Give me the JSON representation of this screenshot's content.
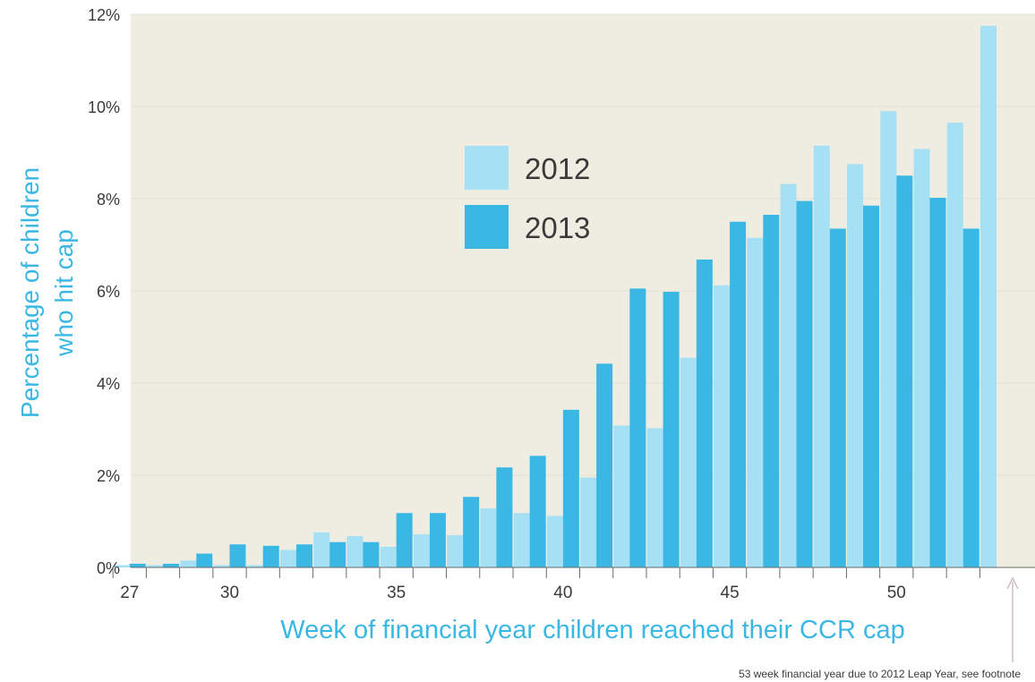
{
  "chart_data": {
    "type": "bar",
    "title": "",
    "xlabel": "Week of financial year children reached their CCR cap",
    "ylabel_line1": "Percentage of children",
    "ylabel_line2": "who hit cap",
    "ylim": [
      0,
      12
    ],
    "yticks": [
      "0%",
      "2%",
      "4%",
      "6%",
      "8%",
      "10%",
      "12%"
    ],
    "ytick_values": [
      0,
      2,
      4,
      6,
      8,
      10,
      12
    ],
    "xtick_labels": [
      "27",
      "30",
      "35",
      "40",
      "45",
      "50"
    ],
    "xtick_weeks": [
      27,
      30,
      35,
      40,
      45,
      50
    ],
    "weeks": [
      27,
      28,
      29,
      30,
      31,
      32,
      33,
      34,
      35,
      36,
      37,
      38,
      39,
      40,
      41,
      42,
      43,
      44,
      45,
      46,
      47,
      48,
      49,
      50,
      51,
      52,
      53
    ],
    "series": [
      {
        "name": "2012",
        "color": "#a6e0f5",
        "values": [
          0.05,
          0.05,
          0.15,
          0.05,
          0.05,
          0.38,
          0.76,
          0.68,
          0.45,
          0.72,
          0.7,
          1.28,
          1.18,
          1.12,
          1.95,
          3.08,
          3.02,
          4.55,
          6.12,
          7.15,
          8.32,
          9.15,
          8.75,
          9.9,
          9.08,
          9.65,
          11.75
        ]
      },
      {
        "name": "2013",
        "color": "#3ab7e3",
        "values": [
          0.08,
          0.08,
          0.3,
          0.5,
          0.47,
          0.5,
          0.55,
          0.55,
          1.18,
          1.18,
          1.53,
          2.17,
          2.42,
          3.42,
          4.42,
          6.05,
          5.98,
          6.68,
          7.5,
          7.65,
          7.95,
          7.35,
          7.85,
          8.5,
          8.02,
          7.35,
          null
        ]
      }
    ],
    "grid": true,
    "legend_position": "upper-center",
    "annotation": "53 week financial year due to 2012 Leap Year, see footnote",
    "colors": {
      "plot_bg": "#efede2",
      "gridline": "#e3e0d3",
      "axis_title": "#3ab7e3",
      "text": "#3a3a3a"
    }
  }
}
